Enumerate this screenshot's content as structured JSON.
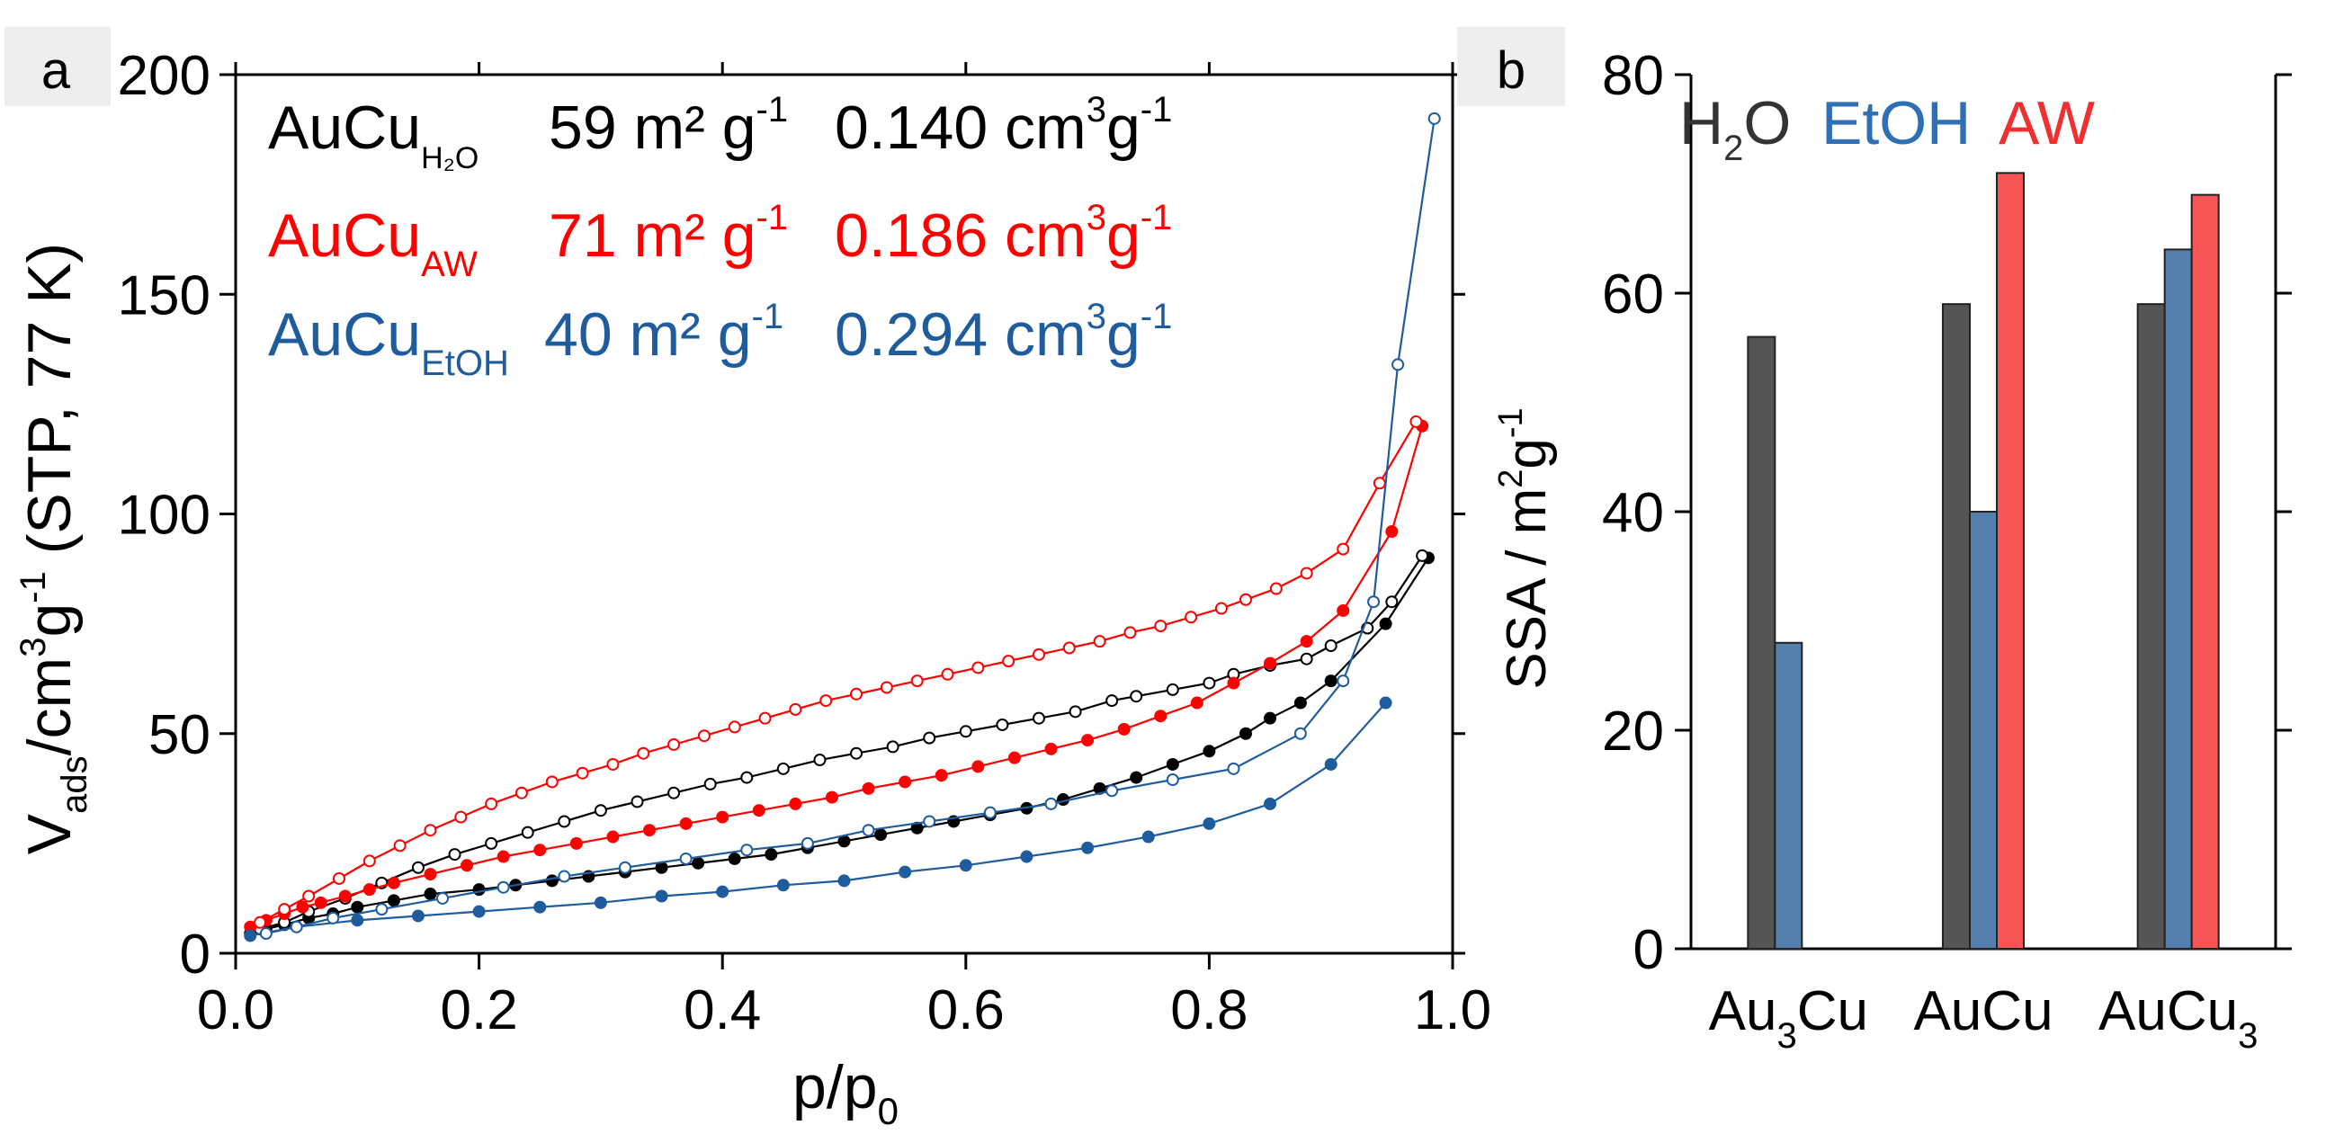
{
  "panels": {
    "a": {
      "label": "a"
    },
    "b": {
      "label": "b"
    }
  },
  "chart_data": [
    {
      "type": "scatter",
      "panel": "a",
      "xlabel": {
        "main": "p/p",
        "sub": "0"
      },
      "ylabel": {
        "p1": "V",
        "sub": "ads",
        "p2": "/cm",
        "sup3": "3",
        "p3": "g",
        "supm1": "-1",
        "p4": " (STP, 77 K)"
      },
      "xlim": [
        0,
        1.0
      ],
      "ylim": [
        0,
        200
      ],
      "xticks": [
        0.0,
        0.2,
        0.4,
        0.6,
        0.8,
        1.0
      ],
      "xtick_labels": [
        "0.0",
        "0.2",
        "0.4",
        "0.6",
        "0.8",
        "1.0"
      ],
      "yticks": [
        0,
        50,
        100,
        150,
        200
      ],
      "ytick_labels": [
        "0",
        "50",
        "100",
        "150",
        "200"
      ],
      "legend": [
        {
          "base": "AuCu",
          "sub": "H₂O",
          "ssa": "59 m² g",
          "ssa_sup": "-1",
          "vol": "0.140 cm",
          "vol_sup": "3",
          "vol_unit": "g",
          "vol_unit_sup": "-1",
          "color": "#000000"
        },
        {
          "base": "AuCu",
          "sub": "AW",
          "ssa": "71 m² g",
          "ssa_sup": "-1",
          "vol": "0.186 cm",
          "vol_sup": "3",
          "vol_unit": "g",
          "vol_unit_sup": "-1",
          "color": "#ff0000"
        },
        {
          "base": "AuCu",
          "sub": "EtOH",
          "ssa": "40 m² g",
          "ssa_sup": "-1",
          "vol": "0.294 cm",
          "vol_sup": "3",
          "vol_unit": "g",
          "vol_unit_sup": "-1",
          "color": "#1f5c9e"
        }
      ],
      "series": [
        {
          "name": "AuCu_H2O adsorption",
          "color": "#000000",
          "filled": true,
          "x": [
            0.012,
            0.025,
            0.04,
            0.06,
            0.08,
            0.1,
            0.13,
            0.16,
            0.2,
            0.23,
            0.26,
            0.29,
            0.32,
            0.35,
            0.38,
            0.41,
            0.44,
            0.47,
            0.5,
            0.53,
            0.56,
            0.59,
            0.62,
            0.65,
            0.68,
            0.71,
            0.74,
            0.77,
            0.8,
            0.83,
            0.85,
            0.875,
            0.9,
            0.945,
            0.98
          ],
          "y": [
            4.5,
            5.5,
            6.5,
            8,
            9,
            10.5,
            12,
            13.5,
            14.5,
            15.5,
            16.5,
            17.5,
            18.5,
            19.5,
            20.5,
            21.5,
            22.5,
            24,
            25.5,
            27,
            28.5,
            30,
            31.5,
            33,
            35,
            37.5,
            40,
            43,
            46,
            50,
            53.5,
            57,
            62,
            75,
            90
          ]
        },
        {
          "name": "AuCu_H2O desorption",
          "color": "#000000",
          "filled": false,
          "x": [
            0.975,
            0.95,
            0.93,
            0.9,
            0.88,
            0.85,
            0.82,
            0.8,
            0.77,
            0.74,
            0.72,
            0.69,
            0.66,
            0.63,
            0.6,
            0.57,
            0.54,
            0.51,
            0.48,
            0.45,
            0.42,
            0.39,
            0.36,
            0.33,
            0.3,
            0.27,
            0.24,
            0.21,
            0.18,
            0.15,
            0.12,
            0.09,
            0.06,
            0.04,
            0.02
          ],
          "y": [
            90.5,
            80,
            74,
            70,
            67,
            65.5,
            63.5,
            61.5,
            60,
            58.5,
            57.5,
            55,
            53.5,
            52,
            50.5,
            49,
            47,
            45.5,
            44,
            42,
            40,
            38.5,
            36.5,
            34.5,
            32.5,
            30,
            27.5,
            25,
            22.5,
            19.5,
            16,
            12.5,
            9.5,
            7,
            5.5
          ]
        },
        {
          "name": "AuCu_AW adsorption",
          "color": "#ff0000",
          "filled": true,
          "x": [
            0.012,
            0.025,
            0.04,
            0.055,
            0.07,
            0.09,
            0.11,
            0.13,
            0.16,
            0.19,
            0.22,
            0.25,
            0.28,
            0.31,
            0.34,
            0.37,
            0.4,
            0.43,
            0.46,
            0.49,
            0.52,
            0.55,
            0.58,
            0.61,
            0.64,
            0.67,
            0.7,
            0.73,
            0.76,
            0.79,
            0.82,
            0.85,
            0.88,
            0.91,
            0.95,
            0.975
          ],
          "y": [
            6,
            7.5,
            9,
            10.5,
            11.5,
            13,
            14.5,
            16,
            18,
            20,
            22,
            23.5,
            25,
            26.5,
            28,
            29.5,
            31,
            32.5,
            34,
            35.5,
            37.5,
            39,
            40.5,
            42.5,
            44.5,
            46.5,
            48.5,
            51,
            54,
            57,
            61.5,
            66,
            71,
            78,
            96,
            120
          ]
        },
        {
          "name": "AuCu_AW desorption",
          "color": "#ff0000",
          "filled": false,
          "x": [
            0.97,
            0.94,
            0.91,
            0.88,
            0.855,
            0.83,
            0.81,
            0.785,
            0.76,
            0.735,
            0.71,
            0.685,
            0.66,
            0.635,
            0.61,
            0.585,
            0.56,
            0.535,
            0.51,
            0.485,
            0.46,
            0.435,
            0.41,
            0.385,
            0.36,
            0.335,
            0.31,
            0.285,
            0.26,
            0.235,
            0.21,
            0.185,
            0.16,
            0.135,
            0.11,
            0.085,
            0.06,
            0.04,
            0.02
          ],
          "y": [
            121,
            107,
            92,
            86.5,
            83,
            80.5,
            78.5,
            76.5,
            74.5,
            73,
            71,
            69.5,
            68,
            66.5,
            65,
            63.5,
            62,
            60.5,
            59,
            57.5,
            55.5,
            53.5,
            51.5,
            49.5,
            47.5,
            45.5,
            43,
            41,
            39,
            36.5,
            34,
            31,
            28,
            24.5,
            21,
            17,
            13,
            10,
            7
          ]
        },
        {
          "name": "AuCu_EtOH adsorption",
          "color": "#1f5c9e",
          "filled": true,
          "x": [
            0.012,
            0.05,
            0.1,
            0.15,
            0.2,
            0.25,
            0.3,
            0.35,
            0.4,
            0.45,
            0.5,
            0.55,
            0.6,
            0.65,
            0.7,
            0.75,
            0.8,
            0.85,
            0.9,
            0.945
          ],
          "y": [
            4,
            6,
            7.5,
            8.5,
            9.5,
            10.5,
            11.5,
            13,
            14,
            15.5,
            16.5,
            18.5,
            20,
            22,
            24,
            26.5,
            29.5,
            34,
            43,
            57
          ]
        },
        {
          "name": "AuCu_EtOH desorption",
          "color": "#1f5c9e",
          "filled": false,
          "x": [
            0.985,
            0.955,
            0.935,
            0.91,
            0.875,
            0.82,
            0.77,
            0.72,
            0.67,
            0.62,
            0.57,
            0.52,
            0.47,
            0.42,
            0.37,
            0.32,
            0.27,
            0.22,
            0.17,
            0.12,
            0.08,
            0.05,
            0.025
          ],
          "y": [
            190,
            134,
            80,
            62,
            50,
            42,
            39.5,
            37,
            34,
            32,
            30,
            28,
            25,
            23.5,
            21.5,
            19.5,
            17.5,
            15,
            12.5,
            10,
            8,
            6,
            4.5
          ]
        }
      ]
    },
    {
      "type": "bar",
      "panel": "b",
      "categories": [
        {
          "base": "Au",
          "sub": "3",
          "rest": "Cu"
        },
        {
          "base": "AuCu",
          "sub": "",
          "rest": ""
        },
        {
          "base": "AuCu",
          "sub": "3",
          "rest": ""
        }
      ],
      "series": [
        {
          "name": "H₂O",
          "label_base": "H",
          "label_sub": "2",
          "label_rest": "O",
          "color": "#555555",
          "legend_color": "#333333",
          "values": [
            56,
            59,
            59
          ]
        },
        {
          "name": "EtOH",
          "color": "#5580ad",
          "legend_color": "#2f6fb5",
          "values": [
            28,
            40,
            64
          ]
        },
        {
          "name": "AW",
          "color": "#f85656",
          "legend_color": "#f03030",
          "values": [
            0,
            71,
            69
          ]
        }
      ],
      "ylabel": {
        "p1": "SSA / m",
        "sup2": "2",
        "p2": "g",
        "supm1": "-1"
      },
      "ylim": [
        0,
        80
      ],
      "yticks": [
        0,
        20,
        40,
        60,
        80
      ],
      "ytick_labels": [
        "0",
        "20",
        "40",
        "60",
        "80"
      ],
      "legend_position": "top-left"
    }
  ]
}
